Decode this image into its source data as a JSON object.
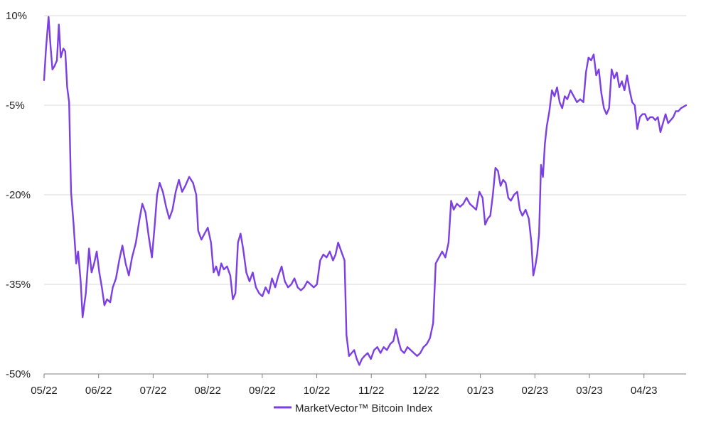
{
  "chart_data": {
    "type": "line",
    "title": "",
    "xlabel": "",
    "ylabel": "",
    "ylim": [
      -50,
      10
    ],
    "y_unit": "%",
    "y_ticks": [
      {
        "value": 10,
        "label": "10%"
      },
      {
        "value": -5,
        "label": "-5%"
      },
      {
        "value": -20,
        "label": "-20%"
      },
      {
        "value": -35,
        "label": "-35%"
      },
      {
        "value": -50,
        "label": "-50%"
      }
    ],
    "x_ticks": [
      "05/22",
      "06/22",
      "07/22",
      "08/22",
      "09/22",
      "10/22",
      "11/22",
      "12/22",
      "01/23",
      "02/23",
      "03/23",
      "04/23"
    ],
    "grid": "horizontal",
    "legend_position": "bottom-center",
    "colors": {
      "line": "#7b3fe4",
      "grid": "#d9d9d9",
      "axis": "#7f7f7f"
    },
    "series": [
      {
        "name": "MarketVector™ Bitcoin Index",
        "points": [
          [
            0.0,
            -0.8
          ],
          [
            0.3,
            4.5
          ],
          [
            0.7,
            9.8
          ],
          [
            1.0,
            5.0
          ],
          [
            1.3,
            1.0
          ],
          [
            1.6,
            1.5
          ],
          [
            2.0,
            2.5
          ],
          [
            2.3,
            8.5
          ],
          [
            2.6,
            3.0
          ],
          [
            3.0,
            4.5
          ],
          [
            3.3,
            4.0
          ],
          [
            3.6,
            -2.0
          ],
          [
            3.9,
            -4.5
          ],
          [
            4.2,
            -19.5
          ],
          [
            4.6,
            -25.0
          ],
          [
            5.0,
            -31.5
          ],
          [
            5.3,
            -29.5
          ],
          [
            5.7,
            -34.5
          ],
          [
            6.0,
            -40.5
          ],
          [
            6.5,
            -36.5
          ],
          [
            7.0,
            -29.0
          ],
          [
            7.4,
            -33.0
          ],
          [
            7.8,
            -31.5
          ],
          [
            8.2,
            -29.5
          ],
          [
            8.6,
            -33.0
          ],
          [
            9.0,
            -35.5
          ],
          [
            9.4,
            -38.5
          ],
          [
            9.8,
            -37.5
          ],
          [
            10.3,
            -38.0
          ],
          [
            10.7,
            -35.5
          ],
          [
            11.2,
            -34.0
          ],
          [
            11.7,
            -31.0
          ],
          [
            12.2,
            -28.5
          ],
          [
            12.7,
            -31.5
          ],
          [
            13.2,
            -33.5
          ],
          [
            13.7,
            -30.5
          ],
          [
            14.3,
            -28.0
          ],
          [
            14.8,
            -24.5
          ],
          [
            15.3,
            -21.5
          ],
          [
            15.8,
            -23.0
          ],
          [
            16.3,
            -27.0
          ],
          [
            16.8,
            -30.5
          ],
          [
            17.2,
            -25.5
          ],
          [
            17.6,
            -20.0
          ],
          [
            18.0,
            -18.0
          ],
          [
            18.5,
            -19.5
          ],
          [
            19.0,
            -22.0
          ],
          [
            19.5,
            -24.0
          ],
          [
            20.0,
            -22.5
          ],
          [
            20.5,
            -19.5
          ],
          [
            21.0,
            -17.5
          ],
          [
            21.5,
            -19.5
          ],
          [
            22.0,
            -18.5
          ],
          [
            22.6,
            -17.0
          ],
          [
            23.2,
            -18.0
          ],
          [
            23.7,
            -20.0
          ],
          [
            24.0,
            -26.0
          ],
          [
            24.5,
            -27.5
          ],
          [
            25.0,
            -26.5
          ],
          [
            25.5,
            -25.5
          ],
          [
            26.0,
            -28.0
          ],
          [
            26.4,
            -33.0
          ],
          [
            26.8,
            -32.0
          ],
          [
            27.2,
            -33.5
          ],
          [
            27.6,
            -31.5
          ],
          [
            28.0,
            -32.5
          ],
          [
            28.5,
            -32.0
          ],
          [
            29.0,
            -33.5
          ],
          [
            29.4,
            -37.5
          ],
          [
            29.8,
            -36.5
          ],
          [
            30.2,
            -28.0
          ],
          [
            30.6,
            -26.5
          ],
          [
            31.0,
            -29.0
          ],
          [
            31.5,
            -33.0
          ],
          [
            32.0,
            -34.5
          ],
          [
            32.5,
            -33.0
          ],
          [
            33.0,
            -35.5
          ],
          [
            33.5,
            -36.5
          ],
          [
            34.0,
            -37.0
          ],
          [
            34.5,
            -35.5
          ],
          [
            35.0,
            -36.5
          ],
          [
            35.5,
            -34.0
          ],
          [
            36.0,
            -35.5
          ],
          [
            36.5,
            -33.5
          ],
          [
            37.0,
            -32.0
          ],
          [
            37.5,
            -34.5
          ],
          [
            38.0,
            -35.5
          ],
          [
            38.5,
            -35.0
          ],
          [
            39.0,
            -34.0
          ],
          [
            39.5,
            -35.5
          ],
          [
            40.0,
            -36.0
          ],
          [
            40.5,
            -35.5
          ],
          [
            41.0,
            -34.5
          ],
          [
            41.5,
            -35.0
          ],
          [
            42.0,
            -35.5
          ],
          [
            42.5,
            -35.0
          ],
          [
            43.0,
            -31.0
          ],
          [
            43.5,
            -30.0
          ],
          [
            44.0,
            -30.5
          ],
          [
            44.5,
            -29.5
          ],
          [
            45.0,
            -31.0
          ],
          [
            45.4,
            -30.0
          ],
          [
            45.8,
            -28.0
          ],
          [
            46.3,
            -29.5
          ],
          [
            46.8,
            -31.0
          ],
          [
            47.1,
            -43.5
          ],
          [
            47.5,
            -47.0
          ],
          [
            47.9,
            -46.5
          ],
          [
            48.3,
            -46.0
          ],
          [
            48.7,
            -47.5
          ],
          [
            49.1,
            -48.5
          ],
          [
            49.5,
            -47.5
          ],
          [
            49.9,
            -47.0
          ],
          [
            50.4,
            -46.5
          ],
          [
            50.9,
            -47.5
          ],
          [
            51.4,
            -46.0
          ],
          [
            51.9,
            -45.5
          ],
          [
            52.4,
            -46.5
          ],
          [
            52.9,
            -45.5
          ],
          [
            53.4,
            -46.0
          ],
          [
            53.9,
            -45.0
          ],
          [
            54.4,
            -44.5
          ],
          [
            54.8,
            -42.5
          ],
          [
            55.2,
            -44.5
          ],
          [
            55.6,
            -46.0
          ],
          [
            56.1,
            -46.5
          ],
          [
            56.6,
            -45.5
          ],
          [
            57.1,
            -46.0
          ],
          [
            57.6,
            -46.5
          ],
          [
            58.1,
            -47.0
          ],
          [
            58.6,
            -46.5
          ],
          [
            59.1,
            -45.5
          ],
          [
            59.6,
            -45.0
          ],
          [
            60.1,
            -44.0
          ],
          [
            60.6,
            -41.5
          ],
          [
            61.0,
            -31.5
          ],
          [
            61.5,
            -30.5
          ],
          [
            62.0,
            -29.5
          ],
          [
            62.5,
            -30.5
          ],
          [
            63.0,
            -28.0
          ],
          [
            63.4,
            -21.0
          ],
          [
            63.8,
            -22.5
          ],
          [
            64.3,
            -21.5
          ],
          [
            64.8,
            -22.0
          ],
          [
            65.3,
            -21.5
          ],
          [
            65.8,
            -20.5
          ],
          [
            66.3,
            -21.5
          ],
          [
            66.8,
            -22.0
          ],
          [
            67.3,
            -22.5
          ],
          [
            67.8,
            -19.5
          ],
          [
            68.3,
            -20.5
          ],
          [
            68.7,
            -25.0
          ],
          [
            69.1,
            -24.0
          ],
          [
            69.5,
            -23.5
          ],
          [
            69.9,
            -20.0
          ],
          [
            70.3,
            -15.5
          ],
          [
            70.7,
            -16.0
          ],
          [
            71.1,
            -18.5
          ],
          [
            71.5,
            -17.5
          ],
          [
            71.9,
            -18.0
          ],
          [
            72.3,
            -20.5
          ],
          [
            72.7,
            -21.0
          ],
          [
            73.2,
            -20.0
          ],
          [
            73.7,
            -19.5
          ],
          [
            74.1,
            -22.5
          ],
          [
            74.5,
            -23.5
          ],
          [
            75.0,
            -22.5
          ],
          [
            75.5,
            -24.0
          ],
          [
            75.9,
            -28.0
          ],
          [
            76.2,
            -33.5
          ],
          [
            76.5,
            -32.0
          ],
          [
            76.8,
            -30.0
          ],
          [
            77.1,
            -26.5
          ],
          [
            77.4,
            -15.0
          ],
          [
            77.7,
            -17.0
          ],
          [
            78.0,
            -11.5
          ],
          [
            78.3,
            -8.5
          ],
          [
            78.7,
            -6.0
          ],
          [
            79.1,
            -2.5
          ],
          [
            79.5,
            -3.5
          ],
          [
            79.9,
            -2.0
          ],
          [
            80.3,
            -4.5
          ],
          [
            80.7,
            -5.5
          ],
          [
            81.1,
            -3.5
          ],
          [
            81.5,
            -4.0
          ],
          [
            82.0,
            -2.5
          ],
          [
            82.5,
            -3.5
          ],
          [
            83.0,
            -4.5
          ],
          [
            83.5,
            -4.0
          ],
          [
            84.0,
            -4.5
          ],
          [
            84.4,
            0.5
          ],
          [
            84.8,
            3.0
          ],
          [
            85.2,
            2.5
          ],
          [
            85.6,
            3.5
          ],
          [
            86.0,
            0.0
          ],
          [
            86.4,
            1.0
          ],
          [
            86.8,
            -3.0
          ],
          [
            87.2,
            -5.5
          ],
          [
            87.6,
            -6.5
          ],
          [
            88.0,
            -5.5
          ],
          [
            88.4,
            1.0
          ],
          [
            88.8,
            -0.5
          ],
          [
            89.2,
            0.5
          ],
          [
            89.6,
            -2.0
          ],
          [
            90.0,
            -1.0
          ],
          [
            90.4,
            -2.5
          ],
          [
            90.8,
            0.0
          ],
          [
            91.2,
            -2.5
          ],
          [
            91.6,
            -4.5
          ],
          [
            92.0,
            -5.0
          ],
          [
            92.4,
            -9.0
          ],
          [
            92.8,
            -7.0
          ],
          [
            93.2,
            -6.5
          ],
          [
            93.6,
            -6.5
          ],
          [
            94.0,
            -7.5
          ],
          [
            94.4,
            -7.0
          ],
          [
            94.8,
            -7.0
          ],
          [
            95.2,
            -7.5
          ],
          [
            95.6,
            -7.0
          ],
          [
            96.0,
            -9.5
          ],
          [
            96.4,
            -8.0
          ],
          [
            96.8,
            -6.5
          ],
          [
            97.2,
            -8.0
          ],
          [
            97.6,
            -7.5
          ],
          [
            98.0,
            -7.0
          ],
          [
            98.4,
            -6.0
          ],
          [
            98.8,
            -6.0
          ],
          [
            99.2,
            -5.5
          ],
          [
            100.0,
            -5.0
          ]
        ]
      }
    ]
  }
}
